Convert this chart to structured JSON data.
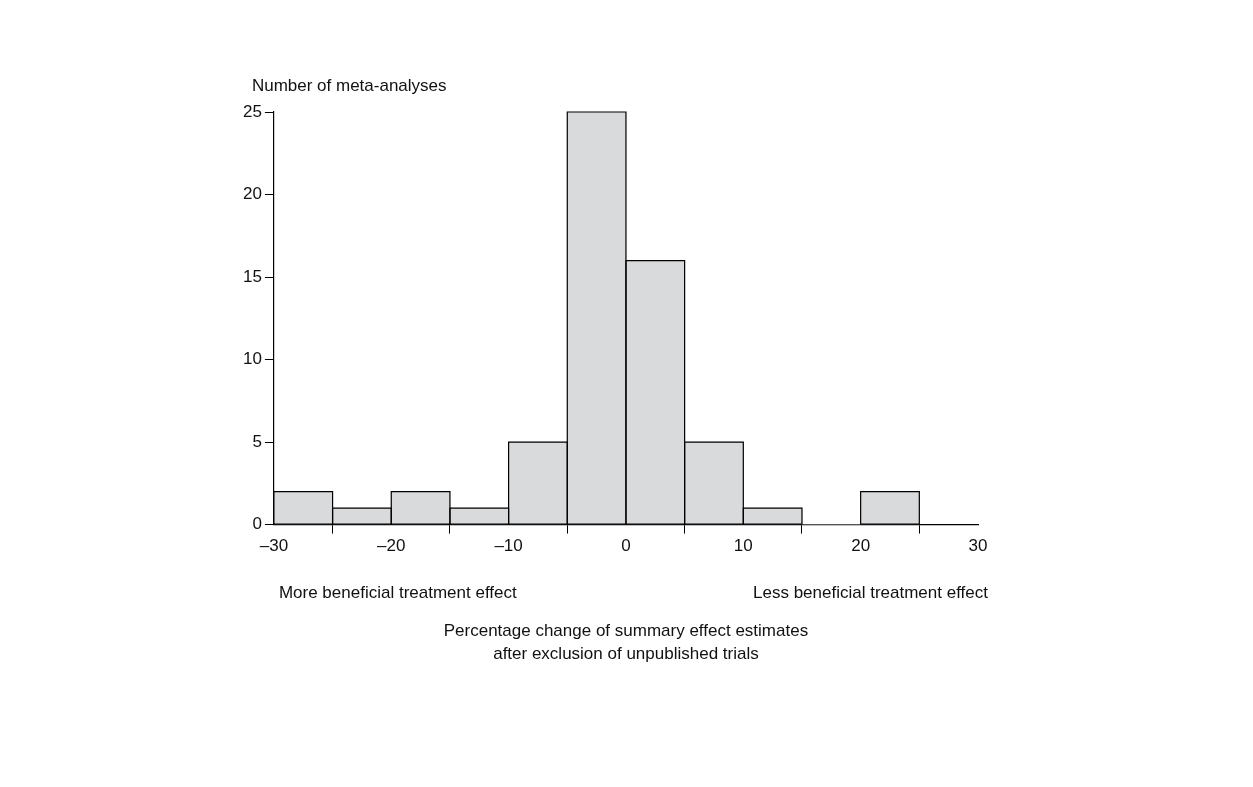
{
  "chart_data": {
    "type": "histogram",
    "ylabel": "Number of meta-analyses",
    "xlabel": "Percentage change of summary effect estimates\nafter exclusion of unpublished trials",
    "annotations": [
      "More beneficial treatment effect",
      "Less beneficial treatment effect"
    ],
    "bins": [
      -30,
      -25,
      -20,
      -15,
      -10,
      -5,
      0,
      5,
      10,
      15,
      20,
      25
    ],
    "values": [
      2,
      1,
      2,
      1,
      5,
      25,
      16,
      5,
      1,
      0,
      2
    ],
    "color": "#d9dadc",
    "xlim": [
      -30,
      30
    ],
    "xticks": [
      {
        "value": -30,
        "label": "–30"
      },
      {
        "value": -20,
        "label": "–20"
      },
      {
        "value": -10,
        "label": "–10"
      },
      0,
      10,
      20,
      30
    ],
    "ylim": [
      0,
      25
    ],
    "yticks": [
      0,
      5,
      10,
      15,
      20,
      25
    ]
  }
}
